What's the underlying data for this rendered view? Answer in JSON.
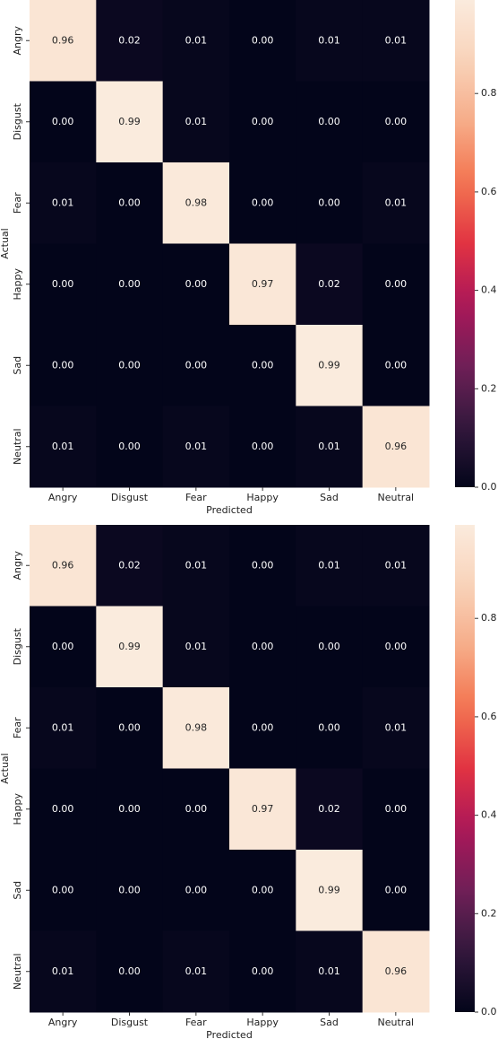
{
  "chart_data": [
    {
      "type": "heatmap",
      "x_label": "Predicted",
      "y_label": "Actual",
      "colormap": "rocket",
      "x_categories": [
        "Angry",
        "Disgust",
        "Fear",
        "Happy",
        "Sad",
        "Neutral"
      ],
      "y_categories": [
        "Angry",
        "Disgust",
        "Fear",
        "Happy",
        "Sad",
        "Neutral"
      ],
      "values": [
        [
          0.96,
          0.02,
          0.01,
          0,
          0.01,
          0.01
        ],
        [
          0,
          0.99,
          0.01,
          0,
          0,
          0
        ],
        [
          0.01,
          0,
          0.98,
          0,
          0,
          0.01
        ],
        [
          0,
          0,
          0,
          0.97,
          0.02,
          0
        ],
        [
          0,
          0,
          0,
          0,
          0.99,
          0
        ],
        [
          0.01,
          0,
          0.01,
          0,
          0.01,
          0.96
        ]
      ],
      "value_labels": [
        [
          "0.96",
          "0.02",
          "0.01",
          "0.00",
          "0.01",
          "0.01"
        ],
        [
          "0.00",
          "0.99",
          "0.01",
          "0.00",
          "0.00",
          "0.00"
        ],
        [
          "0.01",
          "0.00",
          "0.98",
          "0.00",
          "0.00",
          "0.01"
        ],
        [
          "0.00",
          "0.00",
          "0.00",
          "0.97",
          "0.02",
          "0.00"
        ],
        [
          "0.00",
          "0.00",
          "0.00",
          "0.00",
          "0.99",
          "0.00"
        ],
        [
          "0.01",
          "0.00",
          "0.01",
          "0.00",
          "0.01",
          "0.96"
        ]
      ],
      "zlim": [
        0,
        0.99
      ],
      "zticks": [
        {
          "value": 0,
          "label": "0.0"
        },
        {
          "value": 0.2,
          "label": "0.2"
        },
        {
          "value": 0.4,
          "label": "0.4"
        },
        {
          "value": 0.6,
          "label": "0.6"
        },
        {
          "value": 0.8,
          "label": "0.8"
        }
      ]
    },
    {
      "type": "heatmap",
      "x_label": "Predicted",
      "y_label": "Actual",
      "colormap": "rocket",
      "x_categories": [
        "Angry",
        "Disgust",
        "Fear",
        "Happy",
        "Sad",
        "Neutral"
      ],
      "y_categories": [
        "Angry",
        "Disgust",
        "Fear",
        "Happy",
        "Sad",
        "Neutral"
      ],
      "values": [
        [
          0.96,
          0.02,
          0.01,
          0,
          0.01,
          0.01
        ],
        [
          0,
          0.99,
          0.01,
          0,
          0,
          0
        ],
        [
          0.01,
          0,
          0.98,
          0,
          0,
          0.01
        ],
        [
          0,
          0,
          0,
          0.97,
          0.02,
          0
        ],
        [
          0,
          0,
          0,
          0,
          0.99,
          0
        ],
        [
          0.01,
          0,
          0.01,
          0,
          0.01,
          0.96
        ]
      ],
      "value_labels": [
        [
          "0.96",
          "0.02",
          "0.01",
          "0.00",
          "0.01",
          "0.01"
        ],
        [
          "0.00",
          "0.99",
          "0.01",
          "0.00",
          "0.00",
          "0.00"
        ],
        [
          "0.01",
          "0.00",
          "0.98",
          "0.00",
          "0.00",
          "0.01"
        ],
        [
          "0.00",
          "0.00",
          "0.00",
          "0.97",
          "0.02",
          "0.00"
        ],
        [
          "0.00",
          "0.00",
          "0.00",
          "0.00",
          "0.99",
          "0.00"
        ],
        [
          "0.01",
          "0.00",
          "0.01",
          "0.00",
          "0.01",
          "0.96"
        ]
      ],
      "zlim": [
        0,
        0.99
      ],
      "zticks": [
        {
          "value": 0,
          "label": "0.0"
        },
        {
          "value": 0.2,
          "label": "0.2"
        },
        {
          "value": 0.4,
          "label": "0.4"
        },
        {
          "value": 0.6,
          "label": "0.6"
        },
        {
          "value": 0.8,
          "label": "0.8"
        }
      ]
    }
  ]
}
